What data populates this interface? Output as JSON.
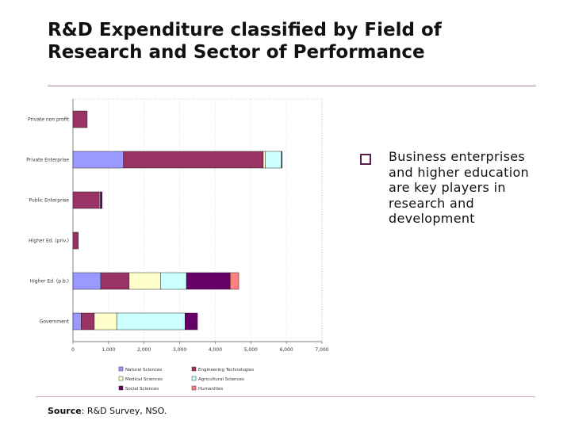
{
  "slide": {
    "title": "R&D Expenditure classified by Field of Research and Sector of Performance",
    "bullet": "Business enterprises and higher education are key players in research and development",
    "source_label": "Source",
    "source_text": ": R&D Survey, NSO."
  },
  "chart_data": {
    "type": "bar",
    "orientation": "horizontal",
    "stacked": true,
    "title": "",
    "xlabel": "",
    "ylabel": "",
    "xlim": [
      0,
      7000
    ],
    "x_ticks": [
      "0",
      "1,000",
      "2,000",
      "3,000",
      "4,000",
      "5,000",
      "6,000",
      "7,000"
    ],
    "grid": true,
    "legend_position": "bottom",
    "categories": [
      "Private non profit",
      "Private Enterprise",
      "Public Enterprise",
      "Higher Ed. (priv.)",
      "Higher Ed. (p.b.)",
      "Government"
    ],
    "series": [
      {
        "name": "Natural Sciences",
        "color": "#9999ff",
        "values": [
          0,
          1420,
          0,
          0,
          780,
          230
        ]
      },
      {
        "name": "Engineering Technologies",
        "color": "#993366",
        "values": [
          400,
          3930,
          740,
          150,
          800,
          370
        ]
      },
      {
        "name": "Medical Sciences",
        "color": "#ffffcc",
        "values": [
          0,
          60,
          0,
          0,
          880,
          630
        ]
      },
      {
        "name": "Agricultural Sciences",
        "color": "#ccffff",
        "values": [
          0,
          450,
          30,
          0,
          730,
          1920
        ]
      },
      {
        "name": "Social Sciences",
        "color": "#660066",
        "values": [
          0,
          20,
          50,
          0,
          1230,
          350
        ]
      },
      {
        "name": "Humanities",
        "color": "#ff8080",
        "values": [
          0,
          0,
          0,
          0,
          240,
          0
        ]
      }
    ]
  }
}
